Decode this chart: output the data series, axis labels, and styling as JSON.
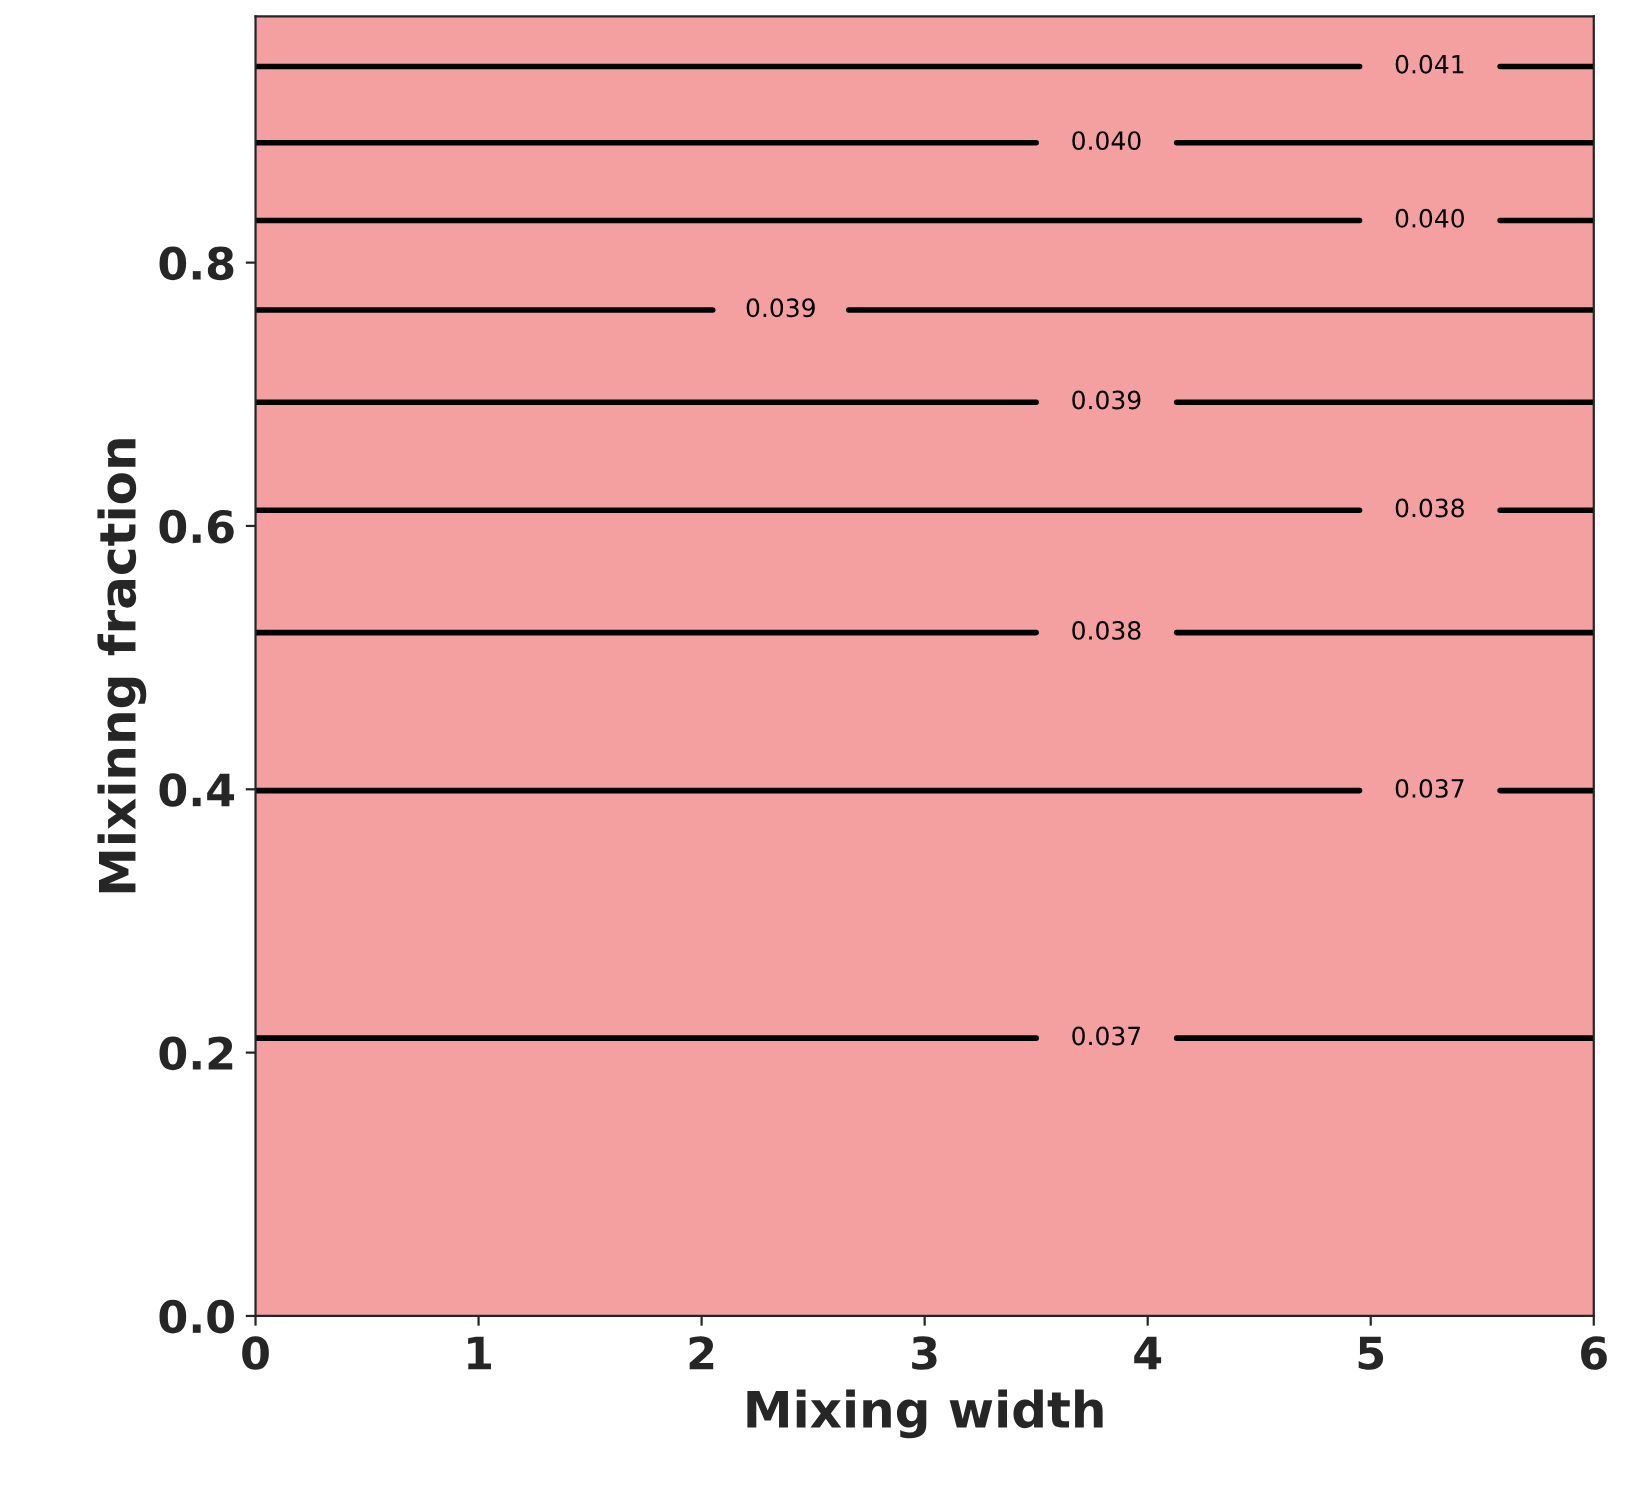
{
  "chart_data": {
    "type": "line",
    "xlabel": "Mixing width",
    "ylabel": "Mixinng fraction",
    "xlim": [
      0,
      6
    ],
    "ylim": [
      0,
      0.987
    ],
    "xticks": [
      0,
      1,
      2,
      3,
      4,
      5,
      6
    ],
    "yticks": [
      {
        "value": 0,
        "label": "0.0"
      },
      {
        "value": 0.2,
        "label": "0.2"
      },
      {
        "value": 0.4,
        "label": "0.4"
      },
      {
        "value": 0.6,
        "label": "0.6"
      },
      {
        "value": 0.8,
        "label": "0.8"
      }
    ],
    "grid": false,
    "legend": false,
    "marker": "none",
    "line_style": "solid",
    "bands": [
      {
        "axis": "y",
        "from": 0,
        "to": 0.987,
        "color": "#f4a0a0"
      }
    ],
    "series": [
      {
        "name": "0.041",
        "color": "#000000",
        "x": [
          0,
          4.95,
          5.26,
          5.58,
          6
        ],
        "values": [
          0.949,
          0.949,
          null,
          0.949,
          0.949
        ]
      },
      {
        "name": "0.040",
        "color": "#000000",
        "x": [
          0,
          3.5,
          3.81,
          4.13,
          6
        ],
        "values": [
          0.891,
          0.891,
          null,
          0.891,
          0.891
        ]
      },
      {
        "name": "0.040",
        "color": "#000000",
        "x": [
          0,
          4.95,
          5.26,
          5.58,
          6
        ],
        "values": [
          0.832,
          0.832,
          null,
          0.832,
          0.832
        ]
      },
      {
        "name": "0.039",
        "color": "#000000",
        "x": [
          0,
          2.05,
          2.35,
          2.66,
          6
        ],
        "values": [
          0.764,
          0.764,
          null,
          0.764,
          0.764
        ]
      },
      {
        "name": "0.039",
        "color": "#000000",
        "x": [
          0,
          3.5,
          3.81,
          4.13,
          6
        ],
        "values": [
          0.694,
          0.694,
          null,
          0.694,
          0.694
        ]
      },
      {
        "name": "0.038",
        "color": "#000000",
        "x": [
          0,
          4.95,
          5.26,
          5.58,
          6
        ],
        "values": [
          0.612,
          0.612,
          null,
          0.612,
          0.612
        ]
      },
      {
        "name": "0.038",
        "color": "#000000",
        "x": [
          0,
          3.5,
          3.81,
          4.13,
          6
        ],
        "values": [
          0.519,
          0.519,
          null,
          0.519,
          0.519
        ]
      },
      {
        "name": "0.037",
        "color": "#000000",
        "x": [
          0,
          4.95,
          5.26,
          5.58,
          6
        ],
        "values": [
          0.399,
          0.399,
          null,
          0.399,
          0.399
        ]
      },
      {
        "name": "0.037",
        "color": "#000000",
        "x": [
          0,
          3.5,
          3.81,
          4.13,
          6
        ],
        "values": [
          0.211,
          0.211,
          null,
          0.211,
          0.211
        ]
      }
    ]
  }
}
